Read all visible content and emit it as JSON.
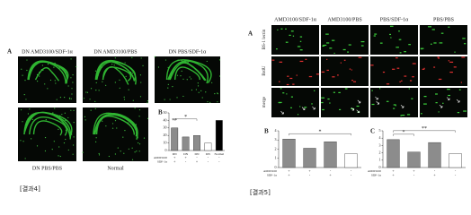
{
  "figure_4": {
    "panel_a_label": "A",
    "panel_b_label": "B",
    "top_images": [
      "DN AMD3100/SDF-1α",
      "DN AMD3100/PBS",
      "DN PBS/SDF-1α"
    ],
    "bottom_images": [
      "DN PBS/PBS",
      "Normal"
    ],
    "caption": "[결과4]"
  },
  "figure_5": {
    "panel_a_label": "A",
    "panel_b_label": "B",
    "panel_c_label": "C",
    "columns": [
      "AMD3100/SDF-1α",
      "AMD3100/PBS",
      "PBS/SDF-1α",
      "PBS/PBS"
    ],
    "rows": [
      "BS-1 lectin",
      "BrdU",
      "merge"
    ],
    "caption": "[결과5]"
  },
  "chart_data": [
    {
      "type": "bar",
      "categories": [
        "DN",
        "DN",
        "DN",
        "DN",
        "Normal"
      ],
      "values": [
        30,
        18,
        20,
        10,
        40
      ],
      "colors": [
        "#8c8c8c",
        "#8c8c8c",
        "#8c8c8c",
        "#ffffff",
        "#000000"
      ],
      "ylim": [
        0,
        50
      ],
      "yticks": [
        0,
        10,
        20,
        30,
        40,
        50
      ],
      "annotations": [
        "**",
        "*"
      ],
      "conditions": [
        {
          "name": "AMD3100",
          "signs": [
            "+",
            "+",
            "-",
            "-",
            "-"
          ]
        },
        {
          "name": "SDF-1α",
          "signs": [
            "+",
            "-",
            "+",
            "-",
            "-"
          ]
        }
      ]
    },
    {
      "type": "bar",
      "categories": [
        null,
        null,
        null,
        null
      ],
      "values": [
        3.1,
        2.1,
        2.8,
        1.5
      ],
      "colors": [
        "#8c8c8c",
        "#8c8c8c",
        "#8c8c8c",
        "#ffffff"
      ],
      "ylim": [
        0,
        4
      ],
      "yticks": [
        0,
        1,
        2,
        3,
        4
      ],
      "annotations": [
        "*"
      ],
      "conditions": [
        {
          "name": "AMD3100",
          "signs": [
            "+",
            "+",
            "-",
            "-"
          ]
        },
        {
          "name": "SDF-1α",
          "signs": [
            "+",
            "-",
            "+",
            "-"
          ]
        }
      ]
    },
    {
      "type": "bar",
      "categories": [
        null,
        null,
        null,
        null
      ],
      "values": [
        3.8,
        2.1,
        3.4,
        1.9
      ],
      "colors": [
        "#8c8c8c",
        "#8c8c8c",
        "#8c8c8c",
        "#ffffff"
      ],
      "ylim": [
        0,
        5
      ],
      "yticks": [
        0,
        1,
        2,
        3,
        4,
        5
      ],
      "annotations": [
        "*",
        "**"
      ],
      "conditions": [
        {
          "name": "AMD3100",
          "signs": [
            "+",
            "+",
            "-",
            "-"
          ]
        },
        {
          "name": "SDF-1α",
          "signs": [
            "+",
            "-",
            "+",
            "-"
          ]
        }
      ]
    }
  ]
}
